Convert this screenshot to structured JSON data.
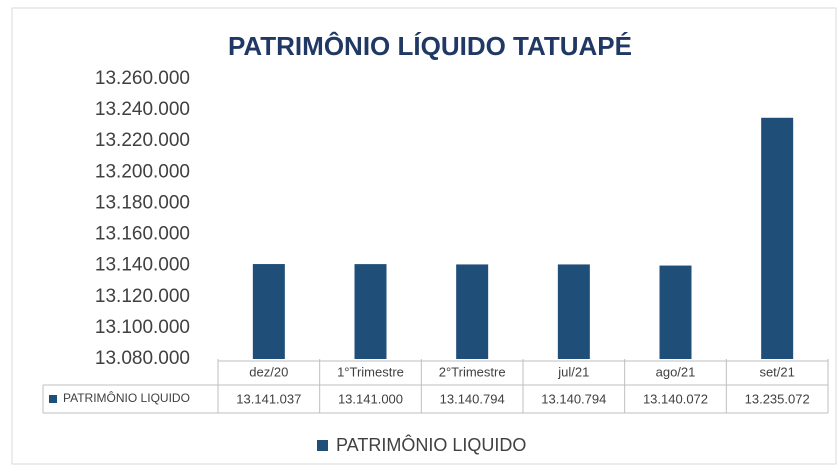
{
  "chart_data": {
    "type": "bar",
    "title": "PATRIMÔNIO LÍQUIDO TATUAPÉ",
    "categories": [
      "dez/20",
      "1°Trimestre",
      "2°Trimestre",
      "jul/21",
      "ago/21",
      "set/21"
    ],
    "series": [
      {
        "name": "PATRIMÔNIO LIQUIDO",
        "color": "#1f4e79",
        "values": [
          13141037,
          13141000,
          13140794,
          13140794,
          13140072,
          13235072
        ],
        "value_labels": [
          "13.141.037",
          "13.141.000",
          "13.140.794",
          "13.140.794",
          "13.140.072",
          "13.235.072"
        ]
      }
    ],
    "ylim": [
      13080000,
      13260000
    ],
    "yticks": [
      {
        "value": 13080000,
        "label": "13.080.000"
      },
      {
        "value": 13100000,
        "label": "13.100.000"
      },
      {
        "value": 13120000,
        "label": "13.120.000"
      },
      {
        "value": 13140000,
        "label": "13.140.000"
      },
      {
        "value": 13160000,
        "label": "13.160.000"
      },
      {
        "value": 13180000,
        "label": "13.180.000"
      },
      {
        "value": 13200000,
        "label": "13.200.000"
      },
      {
        "value": 13220000,
        "label": "13.220.000"
      },
      {
        "value": 13240000,
        "label": "13.240.000"
      },
      {
        "value": 13260000,
        "label": "13.260.000"
      }
    ],
    "grid": false,
    "legend": "bottom"
  }
}
